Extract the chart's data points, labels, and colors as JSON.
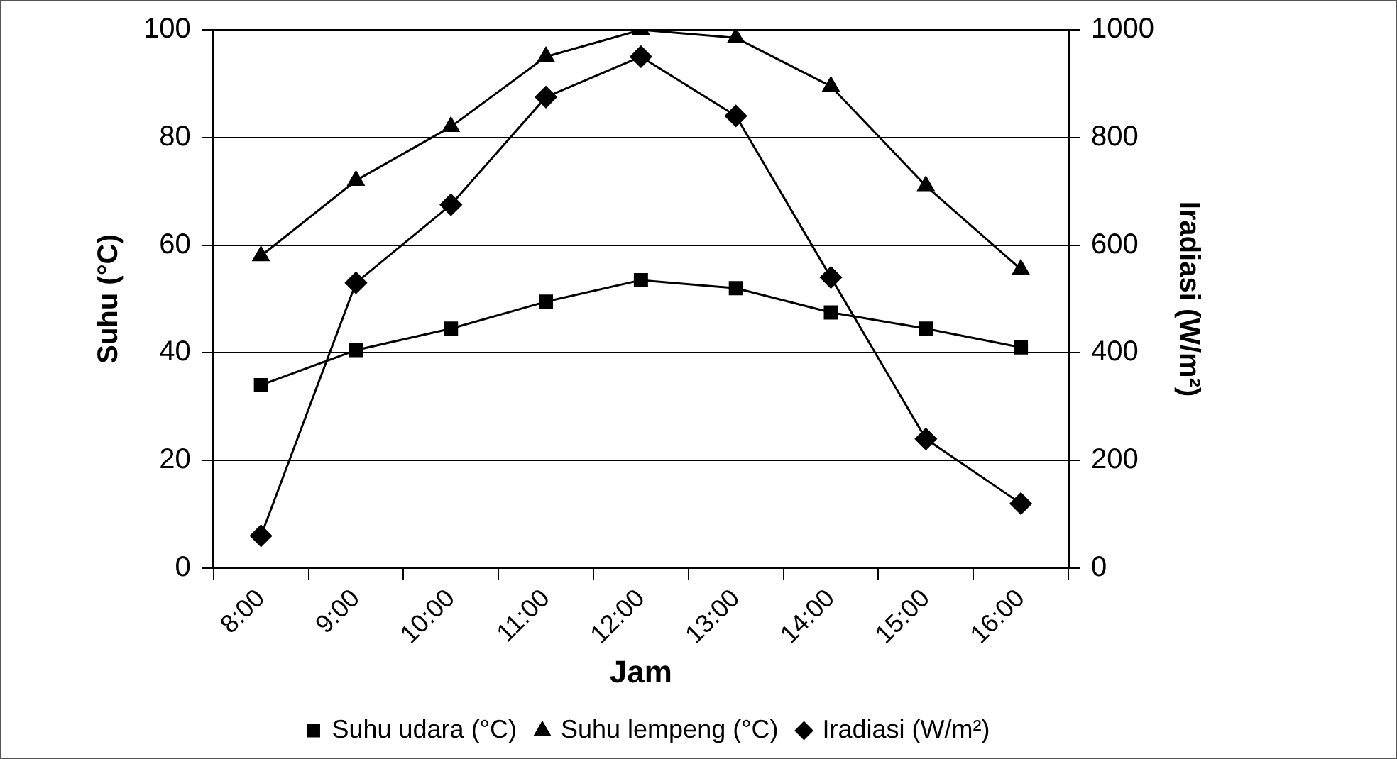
{
  "chart_data": {
    "type": "line",
    "xlabel": "Jam",
    "ylabel": "Suhu (°C)",
    "y2label": "Iradiasi (W/m²)",
    "categories": [
      "8:00",
      "9:00",
      "10:00",
      "11:00",
      "12:00",
      "13:00",
      "14:00",
      "15:00",
      "16:00"
    ],
    "series": [
      {
        "name": "Suhu udara (°C)",
        "color": "#000000",
        "marker": "square",
        "values": [
          34,
          40.5,
          44.5,
          49.5,
          53.5,
          52,
          47.5,
          44.5,
          41
        ]
      },
      {
        "name": "Suhu lempeng (°C)",
        "color": "#000000",
        "marker": "triangle",
        "values": [
          58,
          72,
          82,
          95,
          100,
          98.5,
          89.5,
          71,
          55.5
        ]
      },
      {
        "name": "Iradiasi (W/m²)",
        "color": "#000000",
        "marker": "diamond",
        "axis": "y2",
        "values": [
          60,
          530,
          675,
          875,
          950,
          840,
          540,
          240,
          120
        ]
      }
    ],
    "ylim": [
      0,
      100
    ],
    "yticks": [
      0,
      20,
      40,
      60,
      80,
      100
    ],
    "y2lim": [
      0,
      1000
    ],
    "y2ticks": [
      0,
      200,
      400,
      600,
      800,
      1000
    ],
    "grid": "y",
    "legend": "bottom",
    "line_style": "solid"
  }
}
